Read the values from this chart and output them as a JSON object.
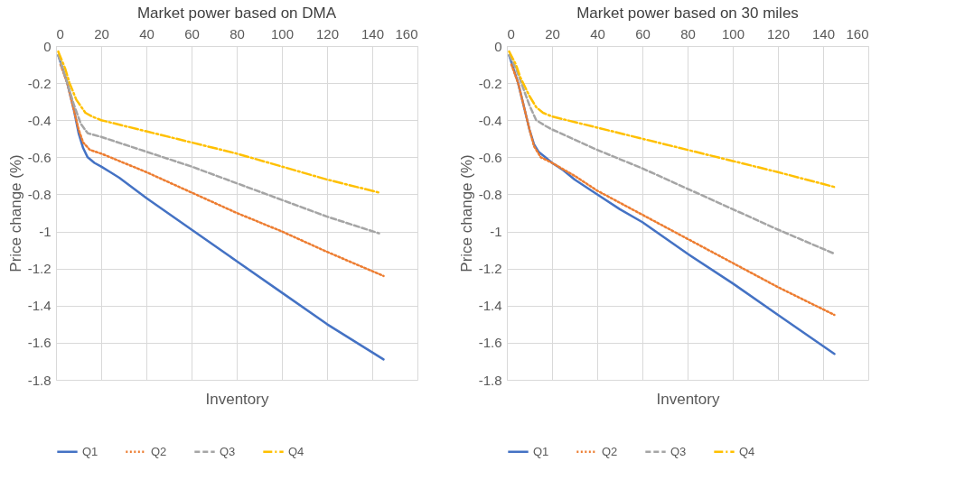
{
  "chart_data": [
    {
      "type": "line",
      "title": "Market power based on DMA",
      "xlabel": "Inventory",
      "ylabel": "Price change (%)",
      "xlim": [
        0,
        160
      ],
      "xticks": [
        0,
        20,
        40,
        60,
        80,
        100,
        120,
        140,
        160
      ],
      "ylim": [
        -1.8,
        0
      ],
      "yticks": [
        0,
        -0.2,
        -0.4,
        -0.6,
        -0.8,
        -1,
        -1.2,
        -1.4,
        -1.6,
        -1.8
      ],
      "grid": true,
      "legend": "bottom",
      "series": [
        {
          "name": "Q1",
          "color": "#4472c4",
          "line_style": "solid",
          "x": [
            1,
            5,
            8,
            10,
            12,
            14,
            17,
            20,
            24,
            28,
            40,
            60,
            80,
            100,
            120,
            145
          ],
          "values": [
            -0.05,
            -0.2,
            -0.35,
            -0.47,
            -0.55,
            -0.6,
            -0.63,
            -0.65,
            -0.68,
            -0.71,
            -0.82,
            -0.99,
            -1.16,
            -1.33,
            -1.5,
            -1.69
          ]
        },
        {
          "name": "Q2",
          "color": "#ed7d31",
          "line_style": "dotted",
          "x": [
            2,
            5,
            8,
            10,
            12,
            15,
            20,
            40,
            60,
            80,
            100,
            120,
            145
          ],
          "values": [
            -0.1,
            -0.2,
            -0.35,
            -0.45,
            -0.52,
            -0.56,
            -0.58,
            -0.68,
            -0.79,
            -0.9,
            -1.0,
            -1.11,
            -1.24
          ]
        },
        {
          "name": "Q3",
          "color": "#a5a5a5",
          "line_style": "dashed",
          "x": [
            1,
            5,
            8,
            11,
            14,
            20,
            30,
            40,
            60,
            80,
            100,
            120,
            143
          ],
          "values": [
            -0.05,
            -0.2,
            -0.32,
            -0.42,
            -0.47,
            -0.49,
            -0.53,
            -0.57,
            -0.65,
            -0.74,
            -0.83,
            -0.92,
            -1.01
          ]
        },
        {
          "name": "Q4",
          "color": "#ffc000",
          "line_style": "dashdot",
          "x": [
            1,
            4,
            6,
            9,
            13,
            16,
            20,
            30,
            40,
            60,
            80,
            100,
            120,
            143
          ],
          "values": [
            -0.03,
            -0.12,
            -0.2,
            -0.29,
            -0.36,
            -0.38,
            -0.4,
            -0.43,
            -0.46,
            -0.52,
            -0.58,
            -0.65,
            -0.72,
            -0.79
          ]
        }
      ]
    },
    {
      "type": "line",
      "title": "Market power based on 30 miles",
      "xlabel": "Inventory",
      "ylabel": "Price change (%)",
      "xlim": [
        0,
        160
      ],
      "xticks": [
        0,
        20,
        40,
        60,
        80,
        100,
        120,
        140,
        160
      ],
      "ylim": [
        -1.8,
        0
      ],
      "yticks": [
        0,
        -0.2,
        -0.4,
        -0.6,
        -0.8,
        -1,
        -1.2,
        -1.4,
        -1.6,
        -1.8
      ],
      "grid": true,
      "legend": "bottom",
      "series": [
        {
          "name": "Q1",
          "color": "#4472c4",
          "line_style": "solid",
          "x": [
            1,
            5,
            8,
            10,
            12,
            14,
            17,
            20,
            25,
            30,
            40,
            50,
            60,
            80,
            100,
            120,
            145
          ],
          "values": [
            -0.05,
            -0.2,
            -0.35,
            -0.45,
            -0.53,
            -0.57,
            -0.6,
            -0.63,
            -0.67,
            -0.72,
            -0.8,
            -0.88,
            -0.95,
            -1.12,
            -1.28,
            -1.45,
            -1.66
          ]
        },
        {
          "name": "Q2",
          "color": "#ed7d31",
          "line_style": "dotted",
          "x": [
            2,
            5,
            8,
            10,
            12,
            15,
            20,
            30,
            40,
            60,
            80,
            100,
            120,
            145
          ],
          "values": [
            -0.1,
            -0.2,
            -0.35,
            -0.45,
            -0.54,
            -0.6,
            -0.63,
            -0.7,
            -0.78,
            -0.91,
            -1.04,
            -1.17,
            -1.3,
            -1.45
          ]
        },
        {
          "name": "Q3",
          "color": "#a5a5a5",
          "line_style": "dashed",
          "x": [
            1,
            4,
            7,
            10,
            13,
            17,
            20,
            40,
            60,
            80,
            100,
            120,
            145
          ],
          "values": [
            -0.05,
            -0.12,
            -0.22,
            -0.32,
            -0.4,
            -0.43,
            -0.45,
            -0.56,
            -0.66,
            -0.77,
            -0.88,
            -0.99,
            -1.12
          ]
        },
        {
          "name": "Q4",
          "color": "#ffc000",
          "line_style": "dashdot",
          "x": [
            1,
            4,
            6,
            10,
            13,
            16,
            20,
            40,
            60,
            80,
            100,
            120,
            145
          ],
          "values": [
            -0.03,
            -0.1,
            -0.17,
            -0.27,
            -0.33,
            -0.36,
            -0.38,
            -0.44,
            -0.5,
            -0.56,
            -0.62,
            -0.68,
            -0.76
          ]
        }
      ]
    }
  ]
}
